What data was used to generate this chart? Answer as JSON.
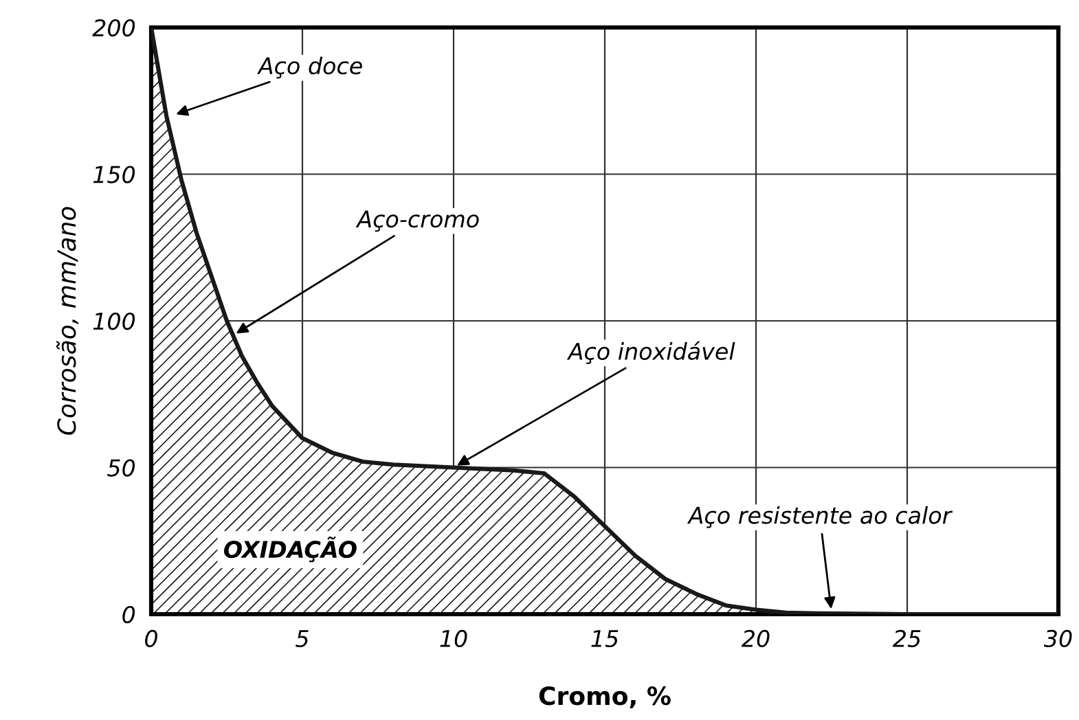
{
  "chart_data": {
    "type": "area",
    "xlabel": "Cromo, %",
    "ylabel": "Corrosão, mm/ano",
    "x": [
      0,
      0.5,
      1,
      1.5,
      2,
      2.5,
      3,
      3.5,
      4,
      5,
      6,
      7,
      8,
      10,
      12,
      13,
      14,
      15,
      16,
      17,
      18,
      19,
      20,
      21,
      22,
      25,
      30
    ],
    "series": [
      {
        "color": "#1a1a1a",
        "values": [
          200,
          170,
          148,
          130,
          115,
          100,
          88,
          79,
          71,
          60,
          55,
          52,
          51,
          50,
          49,
          48,
          40,
          30,
          20,
          12,
          7,
          3,
          1.5,
          0.5,
          0.3,
          0,
          0
        ]
      }
    ],
    "xlim": [
      0,
      30
    ],
    "ylim": [
      0,
      200
    ],
    "xticks": [
      0,
      5,
      10,
      15,
      20,
      25,
      30
    ],
    "yticks": [
      0,
      50,
      100,
      150,
      200
    ],
    "grid": true,
    "annotations": [
      {
        "text": "Aço doce",
        "x": 0.7,
        "y": 170
      },
      {
        "text": "Aço-cromo",
        "x": 2.7,
        "y": 95
      },
      {
        "text": "Aço inoxidável",
        "x": 10,
        "y": 50
      },
      {
        "text": "Aço resistente ao calor",
        "x": 22.5,
        "y": 0.5
      },
      "OXIDAÇÃO"
    ]
  }
}
